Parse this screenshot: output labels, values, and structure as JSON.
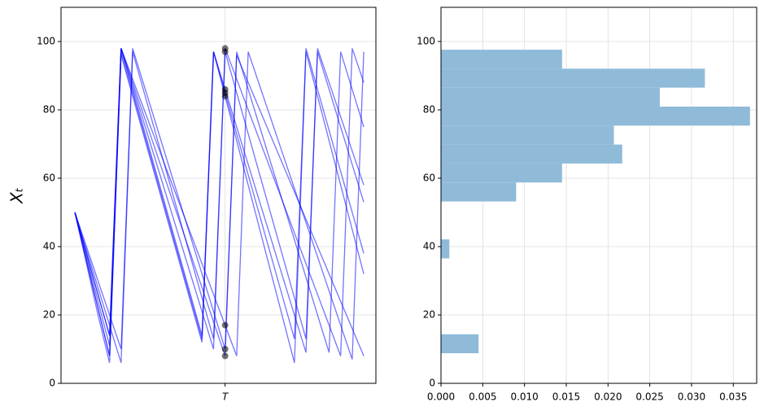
{
  "chart_data": [
    {
      "type": "line",
      "ylabel": "Xₜ",
      "x": [
        0,
        0.04,
        0.08,
        0.12,
        0.16,
        0.2,
        0.24,
        0.28,
        0.32,
        0.36,
        0.4,
        0.44,
        0.48,
        0.52,
        0.56,
        0.6,
        0.64,
        0.68,
        0.72,
        0.76,
        0.8,
        0.84,
        0.88,
        0.92,
        0.96,
        1.0
      ],
      "series": [
        {
          "color": "blue",
          "values": [
            50,
            35,
            20,
            6,
            97,
            85,
            73,
            61,
            49,
            37,
            25,
            13,
            97,
            85,
            73,
            61,
            49,
            37,
            25,
            13,
            98,
            86,
            74,
            62,
            50,
            38
          ]
        },
        {
          "color": "blue",
          "values": [
            50,
            38,
            26,
            14,
            98,
            88,
            78,
            68,
            58,
            48,
            38,
            28,
            18,
            8,
            97,
            86,
            75,
            64,
            53,
            42,
            31,
            20,
            9,
            97,
            86,
            75
          ]
        },
        {
          "color": "blue",
          "values": [
            50,
            36,
            22,
            8,
            96,
            84,
            72,
            60,
            48,
            36,
            24,
            12,
            97,
            86,
            75,
            64,
            53,
            42,
            31,
            20,
            9,
            98,
            88,
            78,
            68,
            58
          ]
        },
        {
          "color": "blue",
          "values": [
            50,
            40,
            30,
            20,
            10,
            98,
            87,
            76,
            65,
            54,
            43,
            32,
            21,
            10,
            96,
            88,
            80,
            72,
            64,
            56,
            48,
            40,
            32,
            24,
            16,
            8
          ]
        },
        {
          "color": "blue",
          "values": [
            50,
            37,
            24,
            11,
            98,
            86,
            74,
            62,
            50,
            38,
            26,
            14,
            97,
            84,
            71,
            58,
            45,
            32,
            19,
            6,
            97,
            84,
            71,
            58,
            45,
            32
          ]
        },
        {
          "color": "blue",
          "values": [
            50,
            39,
            28,
            17,
            6,
            97,
            85,
            73,
            61,
            49,
            37,
            25,
            13,
            97,
            85,
            73,
            61,
            49,
            37,
            25,
            13,
            97,
            86,
            75,
            64,
            53
          ]
        },
        {
          "color": "blue",
          "values": [
            50,
            38,
            26,
            14,
            98,
            87,
            76,
            65,
            54,
            43,
            32,
            21,
            10,
            98,
            89,
            80,
            71,
            62,
            53,
            44,
            35,
            26,
            17,
            8,
            98,
            88
          ]
        },
        {
          "color": "blue",
          "values": [
            50,
            36,
            22,
            8,
            98,
            89,
            80,
            71,
            62,
            53,
            44,
            35,
            26,
            17,
            8,
            97,
            87,
            77,
            67,
            57,
            47,
            37,
            27,
            17,
            7,
            97
          ]
        }
      ],
      "xlim": [
        -0.048,
        1.042
      ],
      "xticks": [
        {
          "value": 0.52,
          "label": "T"
        }
      ],
      "ylim": [
        0,
        110
      ],
      "yticks": [
        0,
        20,
        40,
        60,
        80,
        100
      ],
      "grid": true
    },
    {
      "type": "histogram",
      "orientation": "horizontal",
      "color": "#8fbbd9",
      "bins": [
        8.8,
        14.35,
        19.9,
        25.45,
        31.0,
        36.55,
        42.1,
        47.65,
        53.2,
        58.75,
        64.3,
        69.85,
        75.4,
        80.95,
        86.5,
        92.05,
        97.6
      ],
      "values": [
        0.0045,
        0,
        0,
        0,
        0,
        0.001,
        0,
        0,
        0.009,
        0.0145,
        0.0217,
        0.0207,
        0.037,
        0.0262,
        0.0316,
        0.0145
      ],
      "xlim": [
        0,
        0.0378
      ],
      "xticks": [
        {
          "value": 0,
          "label": "0.000"
        },
        {
          "value": 0.005,
          "label": "0.005"
        },
        {
          "value": 0.01,
          "label": "0.010"
        },
        {
          "value": 0.015,
          "label": "0.015"
        },
        {
          "value": 0.02,
          "label": "0.020"
        },
        {
          "value": 0.025,
          "label": "0.025"
        },
        {
          "value": 0.03,
          "label": "0.030"
        },
        {
          "value": 0.035,
          "label": "0.035"
        }
      ],
      "ylim": [
        0,
        110
      ],
      "yticks": [
        0,
        20,
        40,
        60,
        80,
        100
      ],
      "grid": true
    }
  ]
}
